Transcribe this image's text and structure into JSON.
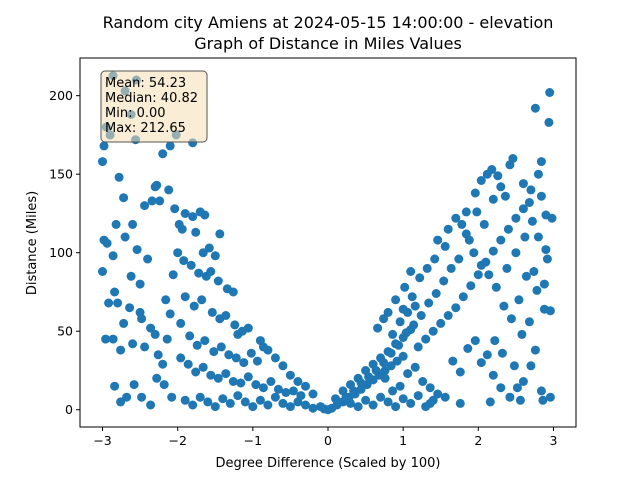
{
  "chart_data": {
    "type": "scatter",
    "title_line1": "Random city Amiens at 2024-05-15 14:00:00  - elevation",
    "title_line2": "Graph of Distance in Miles Values",
    "xlabel": "Degree Difference (Scaled by 100)",
    "ylabel": "Distance (Miles)",
    "xlim": [
      -3.3,
      3.3
    ],
    "ylim": [
      -11,
      224
    ],
    "xticks": [
      -3,
      -2,
      -1,
      0,
      1,
      2,
      3
    ],
    "xtick_labels": [
      "−3",
      "−2",
      "−1",
      "0",
      "1",
      "2",
      "3"
    ],
    "yticks": [
      0,
      50,
      100,
      150,
      200
    ],
    "ytick_labels": [
      "0",
      "50",
      "100",
      "150",
      "200"
    ],
    "grid": false,
    "marker_color": "#1f77b4",
    "stats": {
      "mean": "Mean: 54.23",
      "median": "Median: 40.82",
      "min": "Min: 0.00",
      "max": "Max: 212.65"
    },
    "stats_box_fill": "#f5deb3",
    "stats_box_position": "top-left",
    "points": [
      [
        -2.86,
        212.65
      ],
      [
        -2.7,
        203
      ],
      [
        -2.55,
        210
      ],
      [
        -2.95,
        180
      ],
      [
        -2.98,
        168
      ],
      [
        -3.0,
        158
      ],
      [
        -2.9,
        175
      ],
      [
        -2.62,
        188
      ],
      [
        -2.56,
        172
      ],
      [
        -2.2,
        163
      ],
      [
        -2.44,
        130
      ],
      [
        -2.3,
        142
      ],
      [
        -2.78,
        148
      ],
      [
        -2.72,
        135
      ],
      [
        -2.6,
        118
      ],
      [
        -2.82,
        118
      ],
      [
        -2.98,
        108
      ],
      [
        -2.94,
        106
      ],
      [
        -2.86,
        98
      ],
      [
        -2.7,
        110
      ],
      [
        -2.54,
        102
      ],
      [
        -2.4,
        96
      ],
      [
        -2.62,
        85
      ],
      [
        -2.5,
        80
      ],
      [
        -2.84,
        75
      ],
      [
        -3.0,
        88
      ],
      [
        -2.92,
        68
      ],
      [
        -2.8,
        68
      ],
      [
        -2.64,
        65
      ],
      [
        -2.5,
        62
      ],
      [
        -2.72,
        55
      ],
      [
        -2.48,
        58
      ],
      [
        -2.36,
        52
      ],
      [
        -2.86,
        45
      ],
      [
        -2.96,
        45
      ],
      [
        -2.76,
        38
      ],
      [
        -2.6,
        42
      ],
      [
        -2.44,
        40
      ],
      [
        -2.3,
        48
      ],
      [
        -2.14,
        45
      ],
      [
        -2.84,
        15
      ],
      [
        -2.76,
        5
      ],
      [
        -2.68,
        8
      ],
      [
        -2.58,
        16
      ],
      [
        -2.48,
        8
      ],
      [
        -2.36,
        3
      ],
      [
        -2.28,
        20
      ],
      [
        -2.18,
        16
      ],
      [
        -2.08,
        8
      ],
      [
        -2.2,
        29
      ],
      [
        -2.26,
        35
      ],
      [
        -2.34,
        133
      ],
      [
        -2.28,
        143
      ],
      [
        -2.24,
        133
      ],
      [
        -2.12,
        140
      ],
      [
        -2.04,
        128
      ],
      [
        -1.98,
        118
      ],
      [
        -1.9,
        125
      ],
      [
        -1.8,
        123
      ],
      [
        -1.7,
        126
      ],
      [
        -1.64,
        124
      ],
      [
        -1.76,
        113
      ],
      [
        -1.58,
        103
      ],
      [
        -1.5,
        98
      ],
      [
        -1.82,
        92
      ],
      [
        -1.72,
        87
      ],
      [
        -1.62,
        85
      ],
      [
        -1.56,
        88
      ],
      [
        -1.46,
        82
      ],
      [
        -1.34,
        77
      ],
      [
        -1.26,
        75
      ],
      [
        -1.9,
        72
      ],
      [
        -1.78,
        66
      ],
      [
        -1.68,
        70
      ],
      [
        -1.54,
        62
      ],
      [
        -1.44,
        58
      ],
      [
        -1.36,
        60
      ],
      [
        -1.24,
        54
      ],
      [
        -1.14,
        50
      ],
      [
        -1.96,
        55
      ],
      [
        -1.84,
        47
      ],
      [
        -1.74,
        41
      ],
      [
        -1.64,
        44
      ],
      [
        -1.52,
        37
      ],
      [
        -1.42,
        40
      ],
      [
        -1.32,
        35
      ],
      [
        -1.22,
        33
      ],
      [
        -1.12,
        30
      ],
      [
        -1.02,
        36
      ],
      [
        -0.94,
        31
      ],
      [
        -1.96,
        33
      ],
      [
        -1.86,
        29
      ],
      [
        -1.76,
        24
      ],
      [
        -1.66,
        27
      ],
      [
        -1.56,
        22
      ],
      [
        -1.46,
        20
      ],
      [
        -1.36,
        23
      ],
      [
        -1.26,
        18
      ],
      [
        -1.16,
        17
      ],
      [
        -1.06,
        21
      ],
      [
        -0.96,
        16
      ],
      [
        -0.86,
        14
      ],
      [
        -0.76,
        18
      ],
      [
        -0.66,
        13
      ],
      [
        -0.56,
        11
      ],
      [
        -0.46,
        12
      ],
      [
        -0.36,
        9
      ],
      [
        -1.9,
        6
      ],
      [
        -1.8,
        3
      ],
      [
        -1.7,
        8
      ],
      [
        -1.6,
        5
      ],
      [
        -1.5,
        2
      ],
      [
        -1.4,
        7
      ],
      [
        -1.3,
        4
      ],
      [
        -1.2,
        9
      ],
      [
        -1.1,
        5
      ],
      [
        -1.0,
        2
      ],
      [
        -0.9,
        6
      ],
      [
        -0.8,
        3
      ],
      [
        -0.7,
        8
      ],
      [
        -0.6,
        4
      ],
      [
        -0.5,
        2
      ],
      [
        -0.4,
        5
      ],
      [
        -0.3,
        3
      ],
      [
        -0.2,
        1
      ],
      [
        -0.1,
        2
      ],
      [
        -0.05,
        0.5
      ],
      [
        0.0,
        0
      ],
      [
        -0.9,
        44
      ],
      [
        -0.8,
        38
      ],
      [
        -0.7,
        33
      ],
      [
        -0.6,
        28
      ],
      [
        -0.5,
        22
      ],
      [
        -0.4,
        18
      ],
      [
        -0.3,
        15
      ],
      [
        -0.2,
        10
      ],
      [
        -1.2,
        48
      ],
      [
        -1.06,
        52
      ],
      [
        -0.86,
        40
      ],
      [
        -2.02,
        175
      ],
      [
        -1.8,
        170
      ],
      [
        -2.1,
        168
      ],
      [
        -1.94,
        115
      ],
      [
        -2.0,
        100
      ],
      [
        -1.92,
        95
      ],
      [
        -2.06,
        86
      ],
      [
        -1.66,
        100
      ],
      [
        -1.44,
        112
      ],
      [
        -2.1,
        61
      ],
      [
        -2.16,
        70
      ],
      [
        0.05,
        1
      ],
      [
        0.12,
        3
      ],
      [
        0.2,
        5
      ],
      [
        0.28,
        8
      ],
      [
        0.36,
        10
      ],
      [
        0.44,
        13
      ],
      [
        0.52,
        16
      ],
      [
        0.6,
        19
      ],
      [
        0.68,
        22
      ],
      [
        0.76,
        25
      ],
      [
        0.84,
        28
      ],
      [
        0.92,
        31
      ],
      [
        1.0,
        34
      ],
      [
        0.1,
        7
      ],
      [
        0.2,
        12
      ],
      [
        0.3,
        16
      ],
      [
        0.4,
        20
      ],
      [
        0.5,
        25
      ],
      [
        0.6,
        29
      ],
      [
        0.7,
        33
      ],
      [
        0.8,
        37
      ],
      [
        0.9,
        42
      ],
      [
        1.0,
        46
      ],
      [
        1.1,
        51
      ],
      [
        0.3,
        4
      ],
      [
        0.4,
        2
      ],
      [
        0.5,
        6
      ],
      [
        0.6,
        3
      ],
      [
        0.7,
        8
      ],
      [
        0.8,
        5
      ],
      [
        0.9,
        2
      ],
      [
        1.0,
        7
      ],
      [
        1.1,
        4
      ],
      [
        1.2,
        9
      ],
      [
        1.3,
        2
      ],
      [
        1.4,
        6
      ],
      [
        0.66,
        52
      ],
      [
        0.74,
        58
      ],
      [
        0.86,
        48
      ],
      [
        0.96,
        56
      ],
      [
        1.06,
        62
      ],
      [
        1.16,
        66
      ],
      [
        1.02,
        78
      ],
      [
        1.12,
        72
      ],
      [
        1.22,
        84
      ],
      [
        1.32,
        90
      ],
      [
        1.42,
        96
      ],
      [
        1.46,
        108
      ],
      [
        1.56,
        104
      ],
      [
        1.6,
        115
      ],
      [
        1.7,
        122
      ],
      [
        1.78,
        118
      ],
      [
        1.84,
        126
      ],
      [
        1.96,
        138
      ],
      [
        2.04,
        146
      ],
      [
        2.12,
        150
      ],
      [
        2.2,
        134
      ],
      [
        2.3,
        142
      ],
      [
        2.42,
        156
      ],
      [
        2.46,
        160
      ],
      [
        2.6,
        144
      ],
      [
        2.68,
        132
      ],
      [
        2.72,
        120
      ],
      [
        2.8,
        150
      ],
      [
        2.84,
        136
      ],
      [
        2.9,
        124
      ],
      [
        2.76,
        192
      ],
      [
        2.94,
        183
      ],
      [
        2.95,
        202
      ],
      [
        2.84,
        158
      ],
      [
        2.92,
        96
      ],
      [
        2.88,
        64
      ],
      [
        2.96,
        8
      ],
      [
        2.84,
        12
      ],
      [
        2.76,
        38
      ],
      [
        2.7,
        28
      ],
      [
        2.6,
        18
      ],
      [
        2.52,
        14
      ],
      [
        2.42,
        8
      ],
      [
        2.3,
        14
      ],
      [
        2.2,
        22
      ],
      [
        2.12,
        35
      ],
      [
        2.04,
        30
      ],
      [
        1.96,
        44
      ],
      [
        1.86,
        39
      ],
      [
        1.76,
        24
      ],
      [
        1.66,
        31
      ],
      [
        1.56,
        8
      ],
      [
        1.46,
        10
      ],
      [
        1.36,
        14
      ],
      [
        1.26,
        18
      ],
      [
        1.16,
        27
      ],
      [
        1.06,
        23
      ],
      [
        0.96,
        15
      ],
      [
        0.86,
        12
      ],
      [
        0.76,
        20
      ],
      [
        1.2,
        40
      ],
      [
        1.3,
        45
      ],
      [
        1.4,
        50
      ],
      [
        1.5,
        55
      ],
      [
        1.6,
        60
      ],
      [
        1.7,
        65
      ],
      [
        1.8,
        72
      ],
      [
        1.9,
        79
      ],
      [
        2.0,
        86
      ],
      [
        2.1,
        94
      ],
      [
        2.2,
        101
      ],
      [
        2.3,
        108
      ],
      [
        2.4,
        115
      ],
      [
        2.5,
        122
      ],
      [
        2.6,
        128
      ],
      [
        2.7,
        140
      ],
      [
        2.8,
        110
      ],
      [
        2.9,
        102
      ],
      [
        2.98,
        122
      ],
      [
        2.96,
        63
      ],
      [
        2.88,
        80
      ],
      [
        2.74,
        88
      ],
      [
        2.64,
        85
      ],
      [
        2.54,
        70
      ],
      [
        2.44,
        58
      ],
      [
        2.34,
        66
      ],
      [
        2.24,
        78
      ],
      [
        2.14,
        86
      ],
      [
        2.04,
        92
      ],
      [
        1.94,
        100
      ],
      [
        1.84,
        112
      ],
      [
        1.74,
        96
      ],
      [
        1.64,
        90
      ],
      [
        1.54,
        82
      ],
      [
        1.44,
        74
      ],
      [
        1.34,
        68
      ],
      [
        1.24,
        60
      ],
      [
        1.14,
        54
      ],
      [
        1.04,
        49
      ],
      [
        0.94,
        41
      ],
      [
        0.84,
        36
      ],
      [
        0.74,
        30
      ],
      [
        0.64,
        25
      ],
      [
        0.54,
        21
      ],
      [
        0.44,
        17
      ],
      [
        0.34,
        12
      ],
      [
        0.24,
        8
      ],
      [
        0.14,
        5
      ],
      [
        2.18,
        153
      ],
      [
        2.26,
        149
      ],
      [
        2.36,
        136
      ],
      [
        2.08,
        118
      ],
      [
        1.98,
        126
      ],
      [
        1.88,
        108
      ],
      [
        2.22,
        44
      ],
      [
        2.32,
        36
      ],
      [
        2.48,
        28
      ],
      [
        2.58,
        48
      ],
      [
        2.68,
        56
      ],
      [
        2.78,
        76
      ],
      [
        2.5,
        100
      ],
      [
        2.38,
        90
      ],
      [
        2.62,
        110
      ],
      [
        2.86,
        6
      ],
      [
        2.56,
        6
      ],
      [
        2.16,
        5
      ],
      [
        1.76,
        4
      ],
      [
        1.36,
        4
      ],
      [
        1.0,
        64
      ],
      [
        0.9,
        70
      ],
      [
        0.8,
        62
      ],
      [
        1.1,
        88
      ]
    ]
  }
}
